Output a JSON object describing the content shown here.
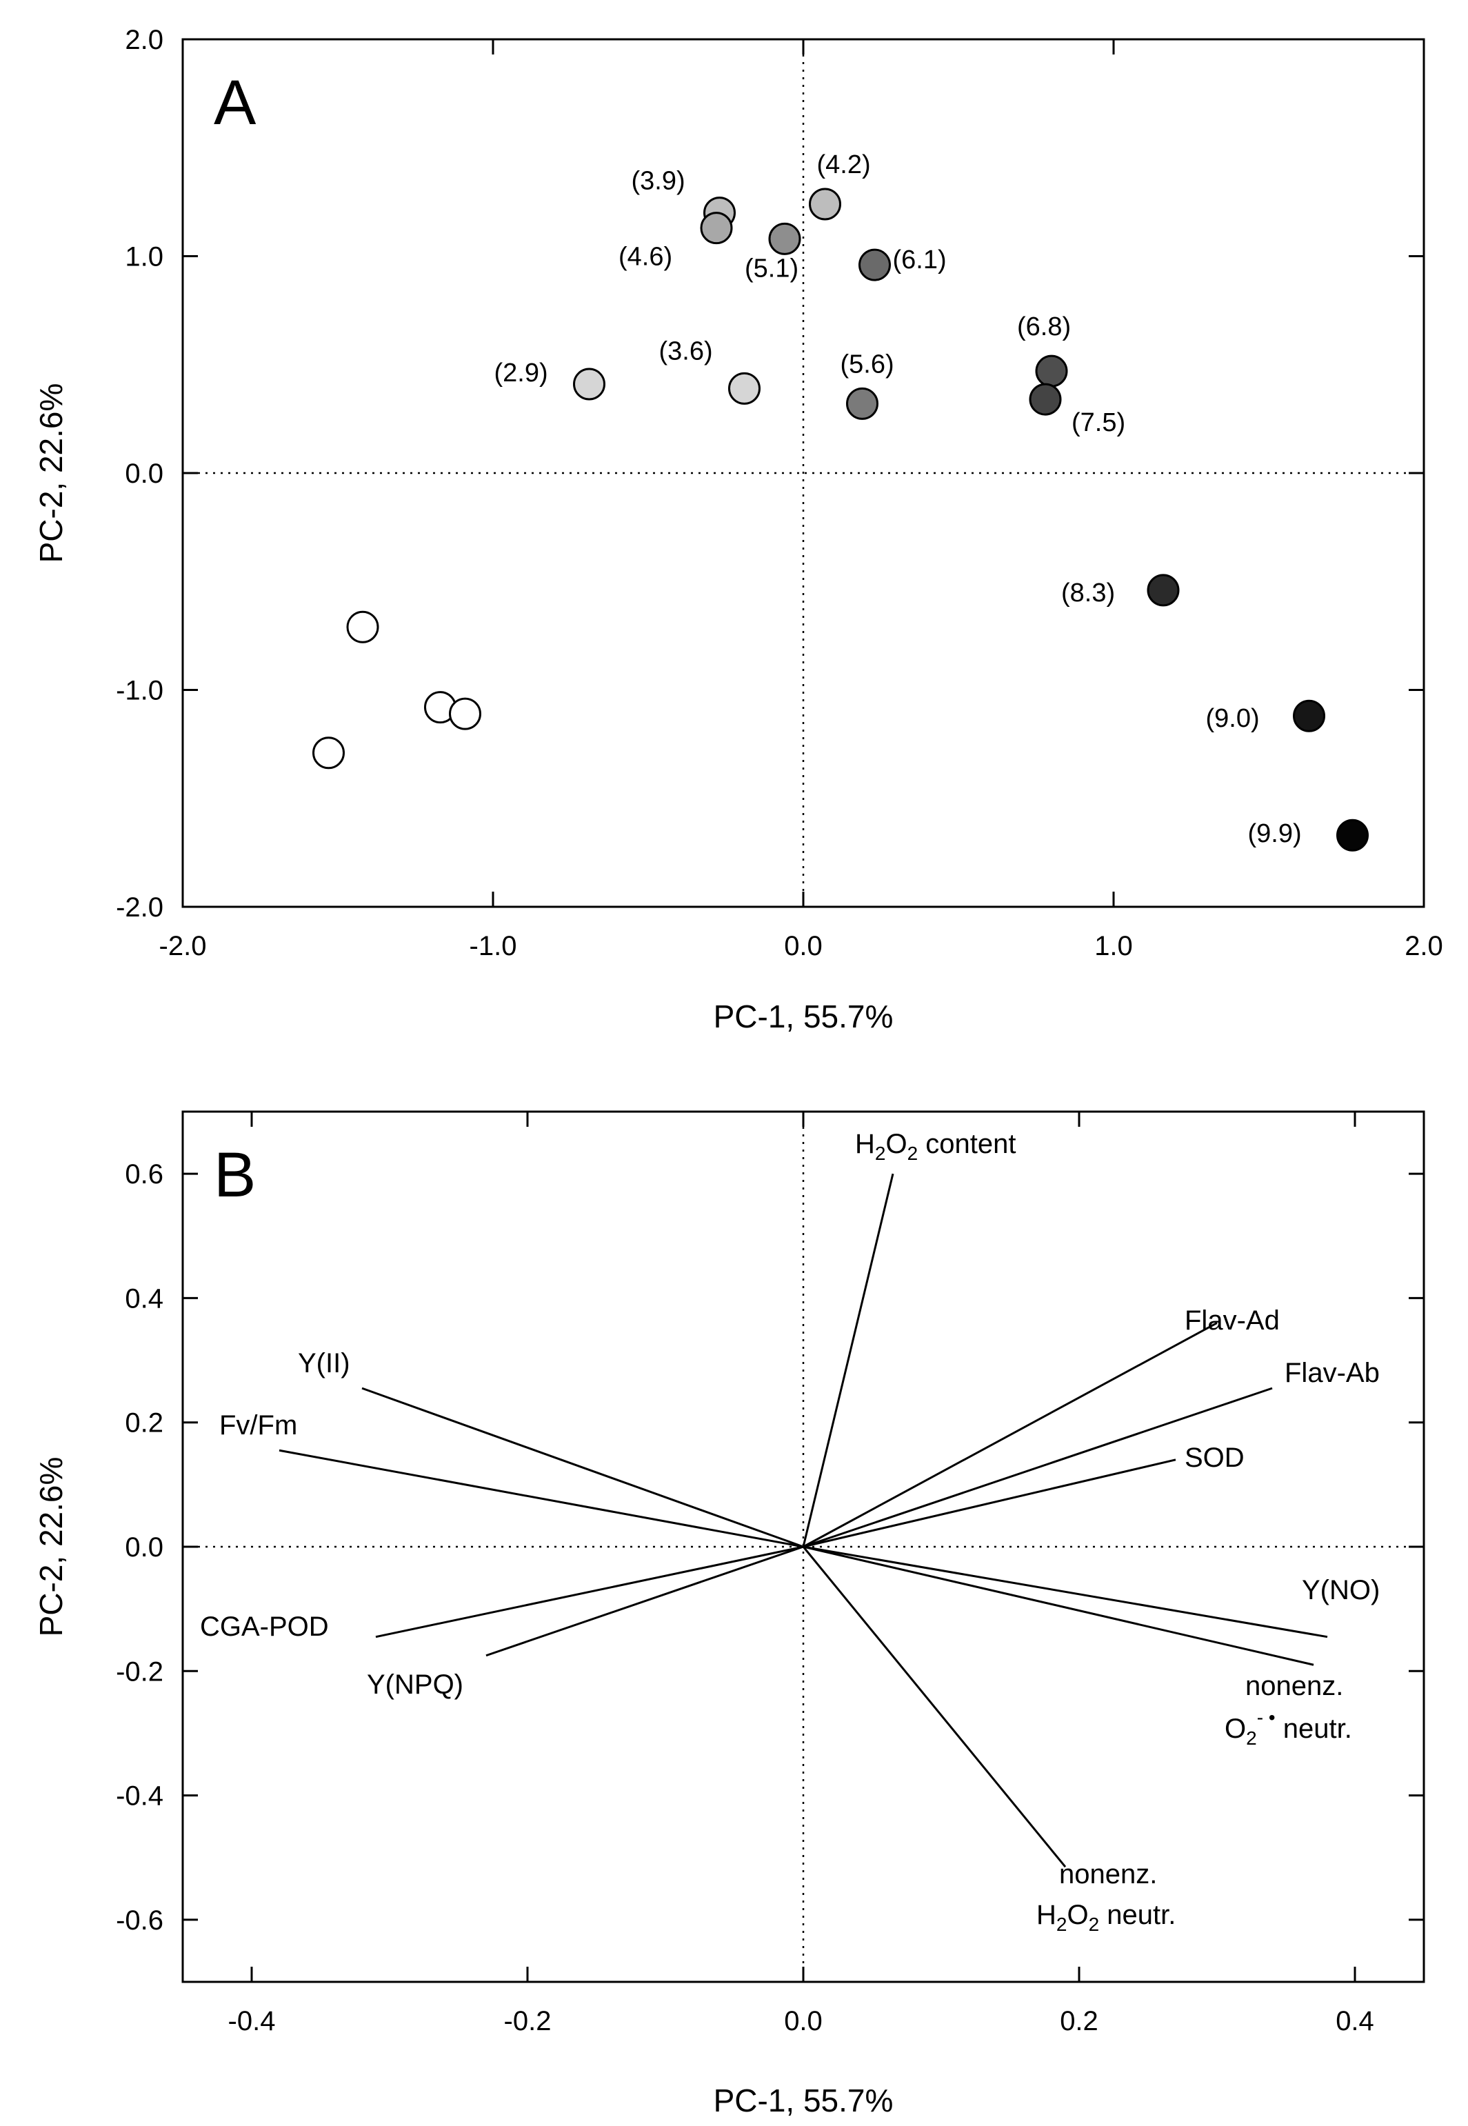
{
  "chart_data": [
    {
      "type": "scatter",
      "panel": "A",
      "xlabel": "PC-1, 55.7%",
      "ylabel": "PC-2, 22.6%",
      "xlim": [
        -2.0,
        2.0
      ],
      "ylim": [
        -2.0,
        2.0
      ],
      "xticks": [
        "-2.0",
        "-1.0",
        "0.0",
        "1.0",
        "2.0"
      ],
      "yticks": [
        "2.0",
        "1.0",
        "0.0",
        "-1.0",
        "-2.0"
      ],
      "reference_lines": "dotted lines at x = 0 and y = 0",
      "points": [
        {
          "x": -1.42,
          "y": -0.71,
          "label": "",
          "color": "#ffffff"
        },
        {
          "x": -1.17,
          "y": -1.08,
          "label": "",
          "color": "#ffffff"
        },
        {
          "x": -1.09,
          "y": -1.11,
          "label": "",
          "color": "#ffffff"
        },
        {
          "x": -1.53,
          "y": -1.29,
          "label": "",
          "color": "#ffffff"
        },
        {
          "x": -0.69,
          "y": 0.41,
          "label": "(2.9)",
          "color": "#d6d6d6"
        },
        {
          "x": -0.19,
          "y": 0.39,
          "label": "(3.6)",
          "color": "#d6d6d6"
        },
        {
          "x": -0.27,
          "y": 1.2,
          "label": "(3.9)",
          "color": "#bdbdbd"
        },
        {
          "x": 0.07,
          "y": 1.24,
          "label": "(4.2)",
          "color": "#bdbdbd"
        },
        {
          "x": -0.28,
          "y": 1.13,
          "label": "(4.6)",
          "color": "#a8a8a8"
        },
        {
          "x": -0.06,
          "y": 1.08,
          "label": "(5.1)",
          "color": "#8e8e8e"
        },
        {
          "x": 0.19,
          "y": 0.32,
          "label": "(5.6)",
          "color": "#7a7a7a"
        },
        {
          "x": 0.23,
          "y": 0.96,
          "label": "(6.1)",
          "color": "#6a6a6a"
        },
        {
          "x": 0.8,
          "y": 0.47,
          "label": "(6.8)",
          "color": "#4e4e4e"
        },
        {
          "x": 0.78,
          "y": 0.34,
          "label": "(7.5)",
          "color": "#444444"
        },
        {
          "x": 1.16,
          "y": -0.54,
          "label": "(8.3)",
          "color": "#2a2a2a"
        },
        {
          "x": 1.63,
          "y": -1.12,
          "label": "(9.0)",
          "color": "#161616"
        },
        {
          "x": 1.77,
          "y": -1.67,
          "label": "(9.9)",
          "color": "#050505"
        }
      ]
    },
    {
      "type": "biplot",
      "panel": "B",
      "xlabel": "PC-1, 55.7%",
      "ylabel": "PC-2, 22.6%",
      "xlim": [
        -0.45,
        0.45
      ],
      "ylim": [
        -0.7,
        0.7
      ],
      "xticks": [
        "-0.4",
        "-0.2",
        "0.0",
        "0.2",
        "0.4"
      ],
      "yticks": [
        "0.6",
        "0.4",
        "0.2",
        "0.0",
        "-0.2",
        "-0.4",
        "-0.6"
      ],
      "reference_lines": "dotted lines at x = 0 and y = 0",
      "vectors": [
        {
          "name": "H2O2 content",
          "x": 0.065,
          "y": 0.6
        },
        {
          "name": "Flav-Ad",
          "x": 0.3,
          "y": 0.36
        },
        {
          "name": "Flav-Ab",
          "x": 0.34,
          "y": 0.255
        },
        {
          "name": "SOD",
          "x": 0.27,
          "y": 0.14
        },
        {
          "name": "Y(II)",
          "x": -0.32,
          "y": 0.255
        },
        {
          "name": "Fv/Fm",
          "x": -0.38,
          "y": 0.155
        },
        {
          "name": "CGA-POD",
          "x": -0.31,
          "y": -0.145
        },
        {
          "name": "Y(NPQ)",
          "x": -0.23,
          "y": -0.175
        },
        {
          "name": "Y(NO)",
          "x": 0.38,
          "y": -0.145
        },
        {
          "name": "nonenz. O2-• neutr.",
          "x": 0.37,
          "y": -0.19
        },
        {
          "name": "nonenz. H2O2 neutr.",
          "x": 0.19,
          "y": -0.515
        }
      ]
    }
  ],
  "labels": {
    "panel_a": "A",
    "panel_b": "B",
    "vec_h2o2_content": {
      "pre": "H",
      "s1": "2",
      "mid": "O",
      "s2": "2",
      "post": " content"
    },
    "vec_flav_ad": "Flav-Ad",
    "vec_flav_ab": "Flav-Ab",
    "vec_sod": "SOD",
    "vec_yii": "Y(II)",
    "vec_fvfm": "Fv/Fm",
    "vec_cgapod": "CGA-POD",
    "vec_ynpq": "Y(NPQ)",
    "vec_yno": "Y(NO)",
    "vec_nonenz_o2_l1": "nonenz.",
    "vec_nonenz_o2_l2": {
      "pre": "O",
      "sub": "2",
      "sup": "- •",
      "post": " neutr."
    },
    "vec_nonenz_h2o2_l1": "nonenz.",
    "vec_nonenz_h2o2_l2": {
      "pre": "H",
      "s1": "2",
      "mid": "O",
      "s2": "2",
      "post": " neutr."
    }
  }
}
